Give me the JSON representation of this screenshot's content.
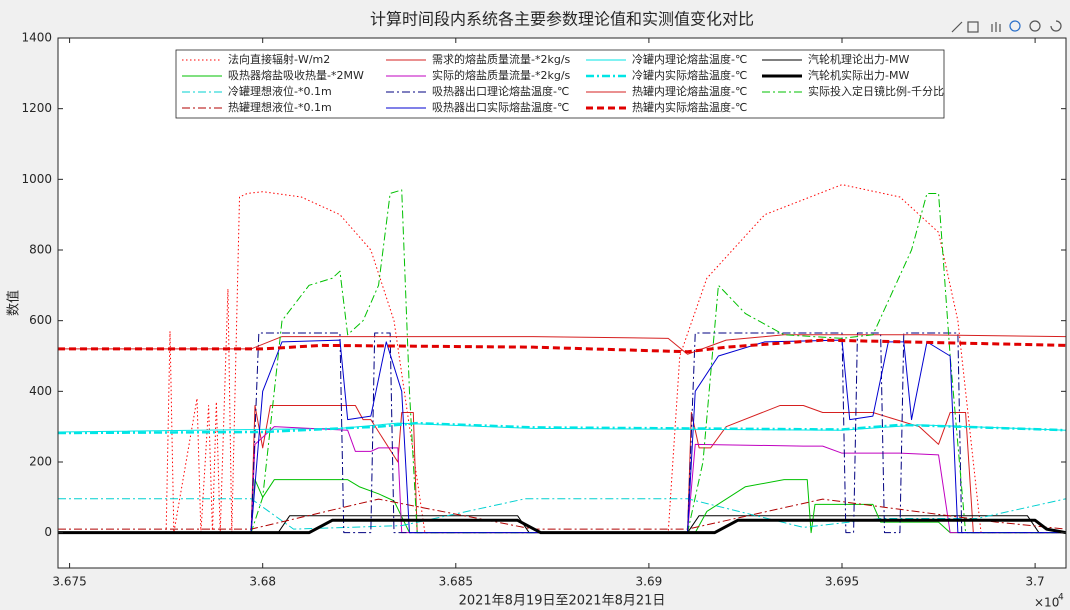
{
  "chart_data": {
    "type": "line",
    "title": "计算时间段内系统各主要参数理论值和实测值变化对比",
    "x_label": "2021年8月19日至2021年8月21日",
    "y_label": "数值",
    "x_multiplier": "×10",
    "x_multiplier_exp": "4",
    "xlim": [
      36747,
      37008
    ],
    "xticks": [
      {
        "value": 36750,
        "label": "3.675"
      },
      {
        "value": 36800,
        "label": "3.68"
      },
      {
        "value": 36850,
        "label": "3.685"
      },
      {
        "value": 36900,
        "label": "3.69"
      },
      {
        "value": 36950,
        "label": "3.695"
      },
      {
        "value": 37000,
        "label": "3.7"
      }
    ],
    "ylim": [
      -100,
      1400
    ],
    "yticks": [
      0,
      200,
      400,
      600,
      800,
      1000,
      1200,
      1400
    ],
    "grid": false,
    "legend_position": "top",
    "series": [
      {
        "name": "法向直接辐射-W/m2",
        "color": "#ff0000",
        "style": "dotted",
        "width": 1,
        "x": [
          36747,
          36775,
          36776,
          36777,
          36783,
          36784,
          36786,
          36787,
          36788,
          36789,
          36791,
          36792,
          36794,
          36796,
          36800,
          36810,
          36820,
          36828,
          36834,
          36838,
          36842,
          36905,
          36908,
          36915,
          36930,
          36950,
          36965,
          36975,
          36980,
          36984,
          36986,
          37008
        ],
        "values": [
          0,
          0,
          570,
          0,
          380,
          0,
          360,
          0,
          370,
          0,
          690,
          0,
          950,
          960,
          965,
          950,
          900,
          800,
          600,
          300,
          0,
          0,
          500,
          720,
          900,
          985,
          950,
          850,
          600,
          200,
          0,
          0
        ]
      },
      {
        "name": "需求的熔盐质量流量-*2kg/s",
        "color": "#d62020",
        "style": "solid",
        "width": 1,
        "x": [
          36747,
          36797,
          36798,
          36800,
          36802,
          36824,
          36826,
          36828,
          36835,
          36836,
          36839,
          36840,
          36910,
          36911,
          36913,
          36916,
          36920,
          36934,
          36940,
          36945,
          36958,
          36970,
          36975,
          36978,
          36982,
          36984,
          37008
        ],
        "values": [
          0,
          0,
          360,
          240,
          360,
          360,
          320,
          320,
          200,
          340,
          340,
          0,
          0,
          340,
          240,
          240,
          300,
          360,
          360,
          340,
          340,
          300,
          250,
          340,
          340,
          0,
          0
        ]
      },
      {
        "name": "冷罐内理论熔盐温度-℃",
        "color": "#00e5e5",
        "style": "solid",
        "width": 1,
        "x": [
          36747,
          36820,
          36835,
          36870,
          36950,
          36970,
          37008
        ],
        "values": [
          285,
          295,
          310,
          295,
          290,
          305,
          290
        ]
      },
      {
        "name": "汽轮机理论出力-MW",
        "color": "#000000",
        "style": "solid",
        "width": 1,
        "x": [
          36747,
          36804,
          36807,
          36866,
          36869,
          36910,
          36913,
          36998,
          37001,
          37008
        ],
        "values": [
          0,
          0,
          48,
          48,
          0,
          0,
          48,
          48,
          0,
          0
        ]
      },
      {
        "name": "吸热器熔盐吸收热量-*2MW",
        "color": "#00c000",
        "style": "solid",
        "width": 1,
        "x": [
          36747,
          36797,
          36798,
          36800,
          36803,
          36822,
          36825,
          36830,
          36834,
          36838,
          36912,
          36915,
          36925,
          36935,
          36941,
          36942,
          36943,
          36958,
          36960,
          36975,
          36978,
          37008
        ],
        "values": [
          0,
          0,
          150,
          100,
          150,
          150,
          130,
          110,
          90,
          0,
          0,
          60,
          130,
          150,
          150,
          0,
          80,
          80,
          30,
          30,
          0,
          0
        ]
      },
      {
        "name": "实际的熔盐质量流量-*2kg/s",
        "color": "#c000c0",
        "style": "solid",
        "width": 1,
        "x": [
          36747,
          36797,
          36798,
          36803,
          36822,
          36824,
          36828,
          36830,
          36835,
          36836,
          36910,
          36912,
          36940,
          36945,
          36950,
          36965,
          36975,
          36978,
          37008
        ],
        "values": [
          0,
          0,
          250,
          300,
          290,
          230,
          230,
          240,
          240,
          0,
          0,
          250,
          245,
          245,
          225,
          225,
          220,
          0,
          0
        ]
      },
      {
        "name": "冷罐内实际熔盐温度-℃",
        "color": "#00e5e5",
        "style": "dashdot",
        "width": 2.5,
        "x": [
          36747,
          36800,
          36830,
          36840,
          36870,
          36950,
          36965,
          36980,
          37008
        ],
        "values": [
          282,
          285,
          300,
          310,
          298,
          292,
          305,
          300,
          290
        ]
      },
      {
        "name": "汽轮机实际出力-MW",
        "color": "#000000",
        "style": "solid",
        "width": 3,
        "x": [
          36747,
          36812,
          36818,
          36866,
          36872,
          36917,
          36923,
          37000,
          37003,
          37008
        ],
        "values": [
          0,
          0,
          35,
          35,
          0,
          0,
          35,
          35,
          10,
          0
        ]
      },
      {
        "name": "冷罐理想液位-*0.1m",
        "color": "#00d0d0",
        "style": "dashdot",
        "width": 1,
        "x": [
          36747,
          36797,
          36808,
          36836,
          36868,
          36910,
          36940,
          36960,
          36985,
          37008
        ],
        "values": [
          96,
          96,
          10,
          20,
          96,
          96,
          15,
          40,
          40,
          96
        ]
      },
      {
        "name": "吸热器出口理论熔盐温度-℃",
        "color": "#000080",
        "style": "dashdot",
        "width": 1,
        "x": [
          36747,
          36797,
          36799,
          36820,
          36821,
          36828,
          36829,
          36833,
          36834,
          36910,
          36912,
          36950,
          36951,
          36953,
          36954,
          36960,
          36961,
          36965,
          36966,
          36980,
          36981,
          37008
        ],
        "values": [
          0,
          0,
          565,
          565,
          0,
          0,
          565,
          565,
          0,
          0,
          565,
          565,
          0,
          0,
          565,
          565,
          0,
          0,
          565,
          565,
          0,
          0
        ]
      },
      {
        "name": "热罐内理论熔盐温度-℃",
        "color": "#d62020",
        "style": "solid",
        "width": 1,
        "x": [
          36747,
          36797,
          36805,
          36870,
          36905,
          36910,
          36920,
          36935,
          36970,
          37008
        ],
        "values": [
          520,
          520,
          555,
          555,
          550,
          505,
          545,
          560,
          560,
          555
        ]
      },
      {
        "name": "实际投入定日镜比例-千分比",
        "color": "#00c000",
        "style": "dashdot",
        "width": 1,
        "x": [
          36747,
          36797,
          36800,
          36805,
          36812,
          36818,
          36820,
          36822,
          36826,
          36830,
          36833,
          36836,
          36838,
          36840,
          36910,
          36914,
          36918,
          36925,
          36935,
          36950,
          36958,
          36968,
          36972,
          36975,
          36978,
          36982,
          37008
        ],
        "values": [
          0,
          0,
          100,
          600,
          700,
          720,
          740,
          560,
          600,
          700,
          960,
          970,
          400,
          0,
          0,
          200,
          700,
          620,
          560,
          550,
          560,
          800,
          960,
          960,
          500,
          0,
          0
        ]
      },
      {
        "name": "热罐理想液位-*0.1m",
        "color": "#b00000",
        "style": "dashdot",
        "width": 1,
        "x": [
          36747,
          36797,
          36830,
          36870,
          36910,
          36945,
          36990,
          37008
        ],
        "values": [
          10,
          10,
          95,
          10,
          10,
          95,
          30,
          10
        ]
      },
      {
        "name": "吸热器出口实际熔盐温度-℃",
        "color": "#0000d0",
        "style": "solid",
        "width": 1,
        "x": [
          36747,
          36797,
          36800,
          36805,
          36820,
          36822,
          36828,
          36832,
          36836,
          36838,
          36910,
          36912,
          36918,
          36930,
          36950,
          36952,
          36958,
          36962,
          36966,
          36968,
          36972,
          36978,
          36980,
          37008
        ],
        "values": [
          0,
          0,
          400,
          540,
          545,
          320,
          330,
          540,
          400,
          0,
          0,
          400,
          500,
          540,
          545,
          320,
          330,
          540,
          540,
          320,
          540,
          500,
          0,
          0
        ]
      },
      {
        "name": "热罐内实际熔盐温度-℃",
        "color": "#e00000",
        "style": "dashed",
        "width": 3,
        "x": [
          36747,
          36800,
          36815,
          36870,
          36910,
          36920,
          36945,
          37008
        ],
        "values": [
          520,
          520,
          530,
          525,
          512,
          525,
          545,
          530
        ]
      }
    ]
  }
}
